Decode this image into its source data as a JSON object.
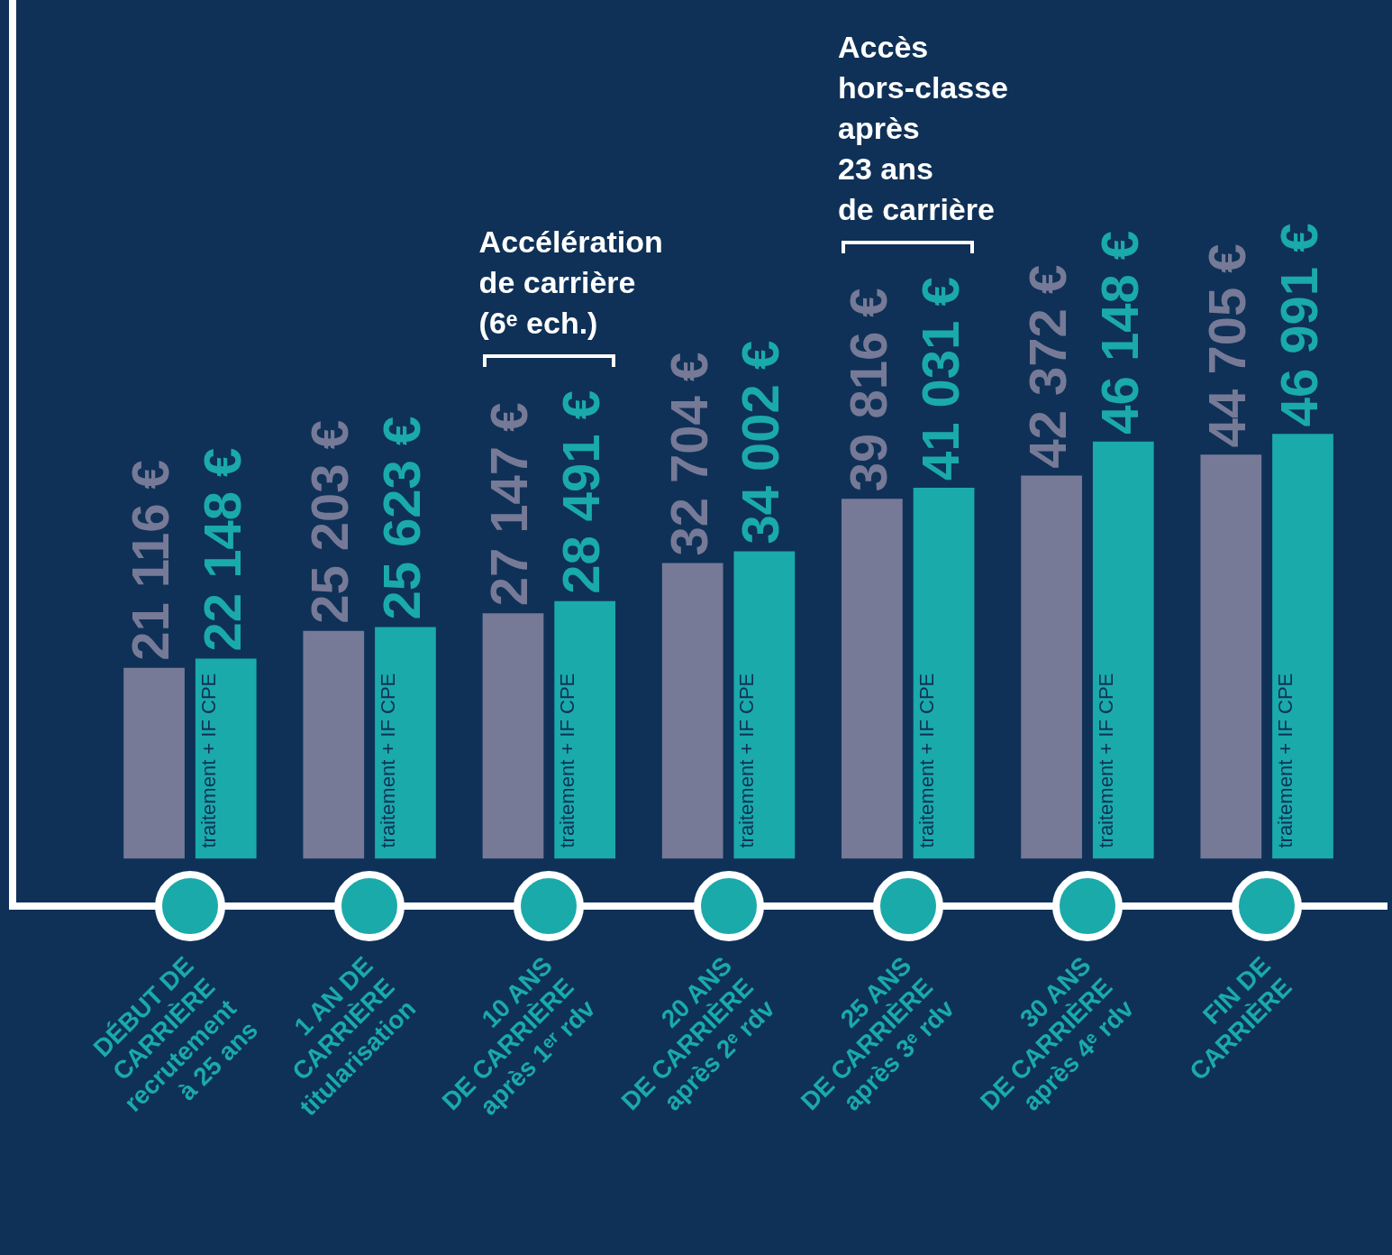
{
  "chart_data": {
    "type": "bar",
    "categories": [
      "DÉBUT DE\nCARRIÈRE\nrecrutement\nà 25 ans",
      "1 AN DE\nCARRIÈRE\ntitularisation",
      "10 ANS\nDE CARRIÈRE\naprès 1ᵉʳ rdv",
      "20 ANS\nDE CARRIÈRE\naprès 2ᵉ rdv",
      "25 ANS\nDE CARRIÈRE\naprès 3ᵉ rdv",
      "30 ANS\nDE CARRIÈRE\naprès 4ᵉ rdv",
      "FIN DE\nCARRIÈRE"
    ],
    "series": [
      {
        "color": "#767a97",
        "values": [
          21116,
          25203,
          27147,
          32704,
          39816,
          42372,
          44705
        ],
        "value_labels": [
          "21 116 €",
          "25 203 €",
          "27 147 €",
          "32 704 €",
          "39 816 €",
          "42 372 €",
          "44 705 €"
        ]
      },
      {
        "name": "traitement + IF CPE",
        "color": "#1aaaa9",
        "values": [
          22148,
          25623,
          28491,
          34002,
          41031,
          46148,
          46991
        ],
        "value_labels": [
          "22 148 €",
          "25 623 €",
          "28 491 €",
          "34 002 €",
          "41 031 €",
          "46 148 €",
          "46 991 €"
        ]
      }
    ],
    "annotations": [
      "Accélération\nde carrière\n(6ᵉ ech.)",
      "Accès\nhors-classe\naprès\n23 ans\nde carrière"
    ],
    "grid": false,
    "legend": false
  }
}
